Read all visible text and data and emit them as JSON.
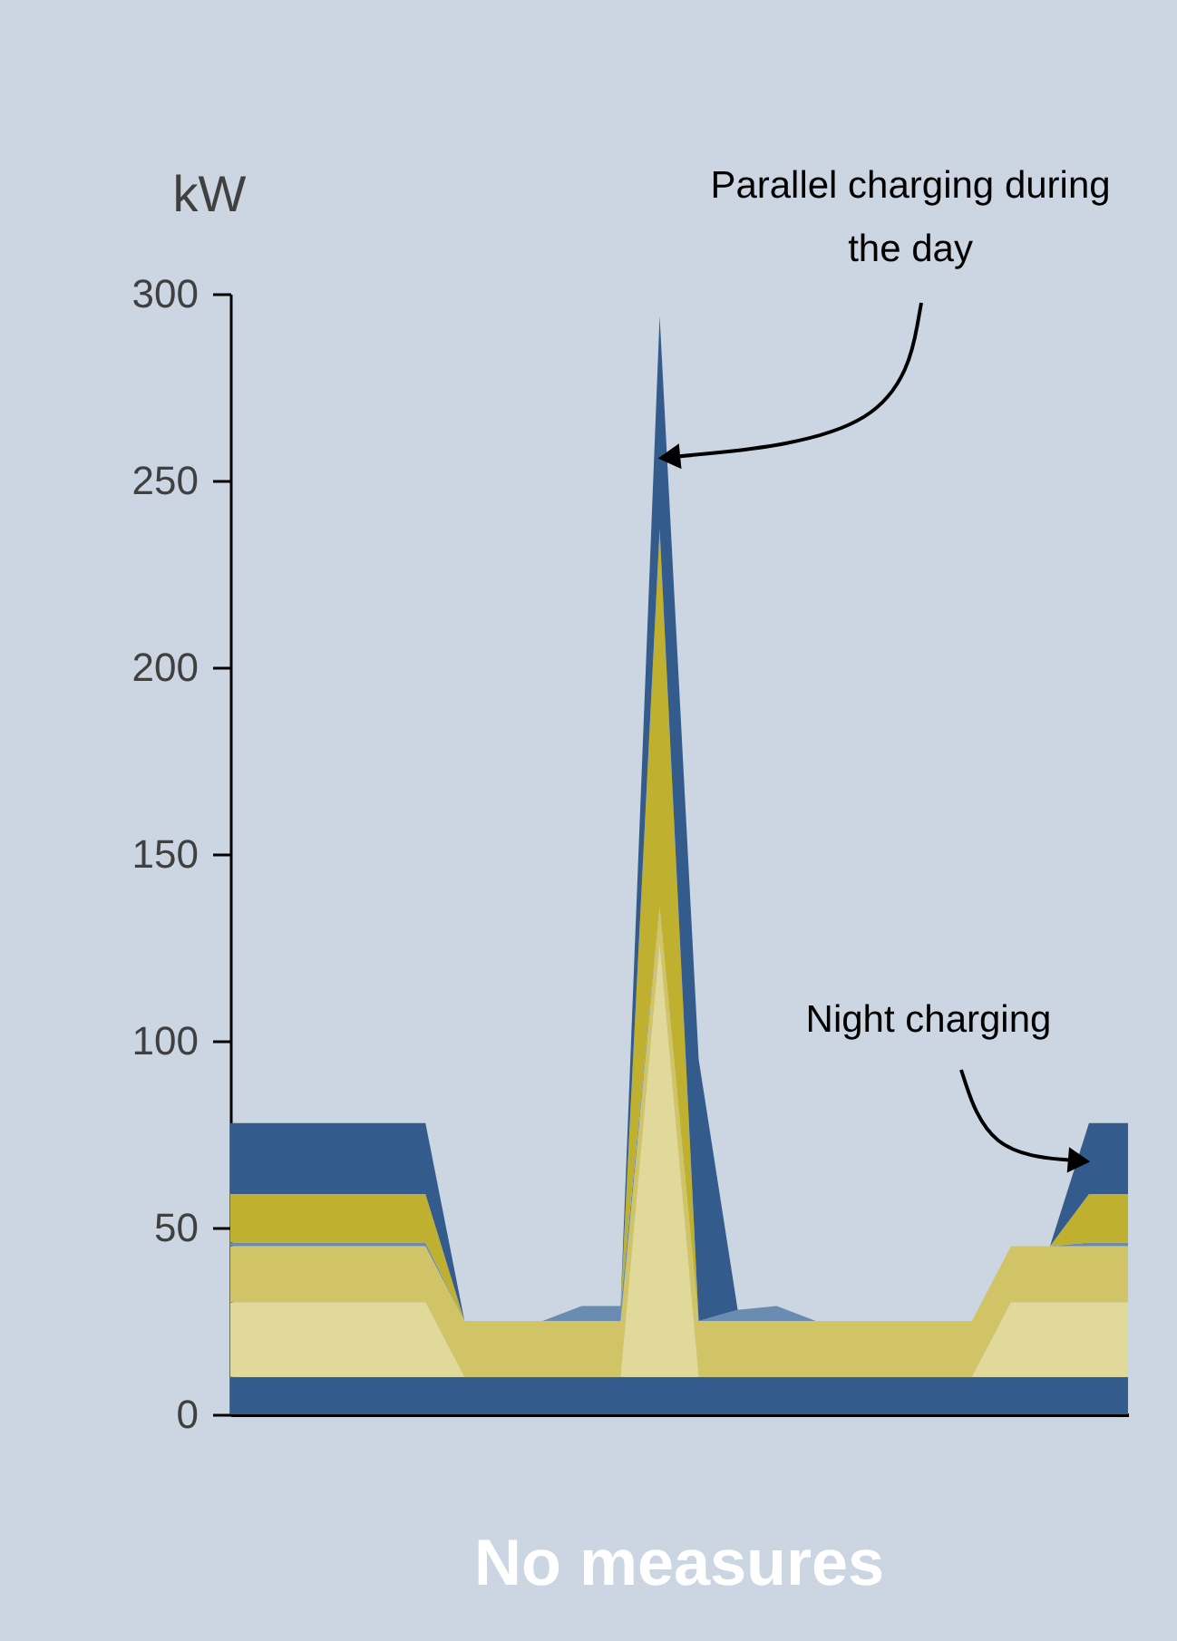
{
  "chart_data": {
    "type": "area",
    "title": "No measures",
    "ylabel": "kW",
    "categories": [
      null,
      null,
      null,
      null,
      null,
      null,
      null,
      null,
      null,
      null,
      null,
      null,
      null,
      null,
      null,
      null,
      null,
      null,
      null,
      null,
      null,
      null,
      null,
      null
    ],
    "ylim": [
      0,
      300
    ],
    "yticks": [
      0,
      50,
      100,
      150,
      200,
      250,
      300
    ],
    "stacked": true,
    "tick_labels": "y",
    "series": [
      {
        "color": "#335c8c",
        "values": [
          10,
          10,
          10,
          10,
          10,
          10,
          10,
          10,
          10,
          10,
          10,
          10,
          10,
          10,
          10,
          10,
          10,
          10,
          10,
          10,
          10,
          10,
          10,
          10
        ]
      },
      {
        "color": "#e0d99a",
        "values": [
          20,
          20,
          20,
          20,
          20,
          20,
          0,
          0,
          0,
          0,
          0,
          116,
          0,
          0,
          0,
          0,
          0,
          0,
          0,
          0,
          20,
          20,
          20,
          20
        ]
      },
      {
        "color": "#d0c466",
        "values": [
          15,
          15,
          15,
          15,
          15,
          15,
          15,
          15,
          15,
          15,
          15,
          10,
          15,
          15,
          15,
          15,
          15,
          15,
          15,
          15,
          15,
          15,
          15,
          15
        ]
      },
      {
        "color": "#6a8cb0",
        "values": [
          1,
          1,
          1,
          1,
          1,
          1,
          0,
          0,
          0,
          4,
          4,
          0,
          0,
          3,
          4,
          0,
          0,
          0,
          0,
          0,
          0,
          0,
          1,
          1
        ]
      },
      {
        "color": "#c0b030",
        "values": [
          13,
          13,
          13,
          13,
          13,
          13,
          0,
          0,
          0,
          0,
          0,
          101,
          0,
          0,
          0,
          0,
          0,
          0,
          0,
          0,
          0,
          0,
          13,
          13
        ]
      },
      {
        "color": "#335c8c",
        "values": [
          19,
          19,
          19,
          19,
          19,
          19,
          0,
          0,
          0,
          0,
          0,
          57,
          70,
          0,
          0,
          0,
          0,
          0,
          0,
          0,
          0,
          0,
          19,
          19
        ]
      }
    ],
    "annotations": [
      "Parallel charging during the day",
      "Night charging"
    ]
  }
}
